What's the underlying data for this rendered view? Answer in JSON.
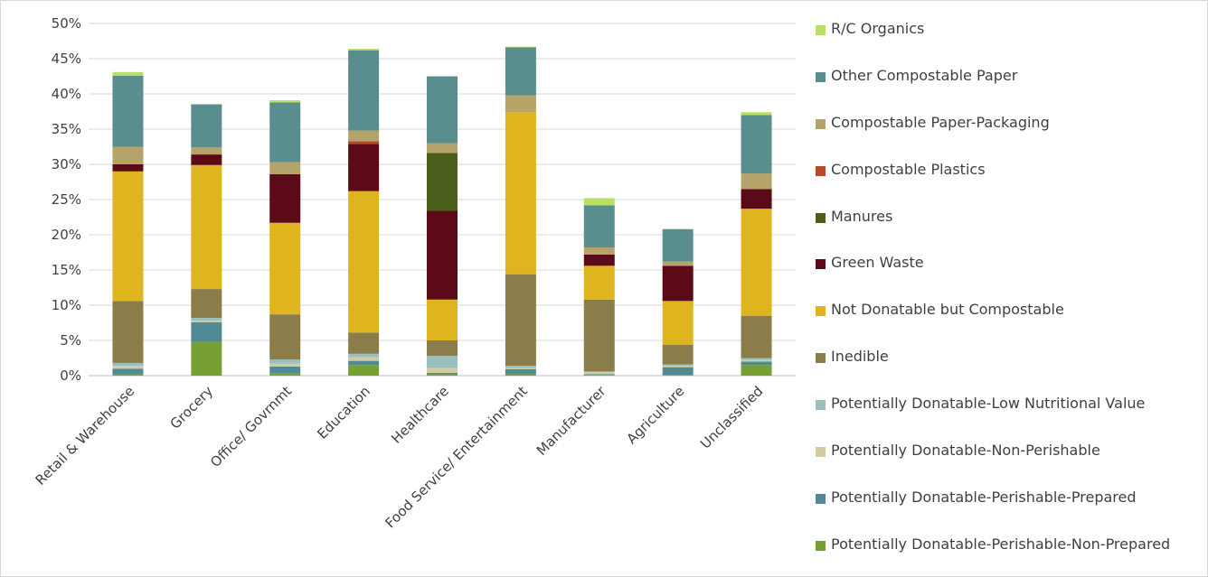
{
  "chart_data": {
    "type": "bar",
    "stacked": true,
    "title": "",
    "xlabel": "",
    "ylabel": "",
    "ylim": [
      0,
      0.5
    ],
    "yticks": [
      "0%",
      "5%",
      "10%",
      "15%",
      "20%",
      "25%",
      "30%",
      "35%",
      "40%",
      "45%",
      "50%"
    ],
    "grid": true,
    "legend_position": "right",
    "categories": [
      "Retail & Warehouse",
      "Grocery",
      "Office/ Govrnmt",
      "Education",
      "Healthcare",
      "Food Service/ Entertainment",
      "Manufacturer",
      "Agriculture",
      "Unclassified"
    ],
    "series": [
      {
        "name": "Potentially Donatable-Perishable-Non-Prepared",
        "color": "#77a033",
        "values": [
          0.002,
          0.048,
          0.003,
          0.015,
          0.002,
          0.002,
          0.001,
          0.001,
          0.015
        ]
      },
      {
        "name": "Potentially Donatable-Perishable-Prepared",
        "color": "#4f8a95",
        "values": [
          0.008,
          0.028,
          0.01,
          0.006,
          0.002,
          0.007,
          0.001,
          0.011,
          0.005
        ]
      },
      {
        "name": "Potentially Donatable-Non-Perishable",
        "color": "#d2cca0",
        "values": [
          0.004,
          0.002,
          0.004,
          0.005,
          0.007,
          0.002,
          0.003,
          0.002,
          0.002
        ]
      },
      {
        "name": "Potentially Donatable-Low Nutritional Value",
        "color": "#9bbfbe",
        "values": [
          0.004,
          0.004,
          0.006,
          0.005,
          0.017,
          0.003,
          0.001,
          0.002,
          0.003
        ]
      },
      {
        "name": "Inedible",
        "color": "#8a7d4a",
        "values": [
          0.088,
          0.041,
          0.064,
          0.03,
          0.022,
          0.13,
          0.102,
          0.028,
          0.06
        ]
      },
      {
        "name": "Not Donatable but Compostable",
        "color": "#deb51f",
        "values": [
          0.184,
          0.176,
          0.13,
          0.201,
          0.058,
          0.23,
          0.048,
          0.062,
          0.152
        ]
      },
      {
        "name": "Green Waste",
        "color": "#5c0a18",
        "values": [
          0.01,
          0.015,
          0.069,
          0.067,
          0.126,
          0.0,
          0.016,
          0.05,
          0.028
        ]
      },
      {
        "name": "Manures",
        "color": "#4c5e1b",
        "values": [
          0.0,
          0.0,
          0.0,
          0.0,
          0.082,
          0.0,
          0.0,
          0.0,
          0.0
        ]
      },
      {
        "name": "Compostable Plastics",
        "color": "#b44c2c",
        "values": [
          0.0,
          0.0,
          0.0,
          0.004,
          0.0,
          0.0,
          0.0,
          0.0,
          0.0
        ]
      },
      {
        "name": "Compostable Paper-Packaging",
        "color": "#b5a36a",
        "values": [
          0.025,
          0.01,
          0.017,
          0.015,
          0.014,
          0.024,
          0.01,
          0.006,
          0.022
        ]
      },
      {
        "name": "Other Compostable Paper",
        "color": "#5a8e8e",
        "values": [
          0.101,
          0.061,
          0.085,
          0.114,
          0.095,
          0.068,
          0.06,
          0.046,
          0.083
        ]
      },
      {
        "name": "R/C Organics",
        "color": "#b9e065",
        "values": [
          0.005,
          0.001,
          0.003,
          0.002,
          0.0,
          0.001,
          0.01,
          0.0,
          0.004
        ]
      }
    ],
    "legend_order": [
      "R/C Organics",
      "Other Compostable Paper",
      "Compostable Paper-Packaging",
      "Compostable Plastics",
      "Manures",
      "Green Waste",
      "Not Donatable but Compostable",
      "Inedible",
      "Potentially Donatable-Low Nutritional Value",
      "Potentially Donatable-Non-Perishable",
      "Potentially Donatable-Perishable-Prepared",
      "Potentially Donatable-Perishable-Non-Prepared"
    ]
  }
}
